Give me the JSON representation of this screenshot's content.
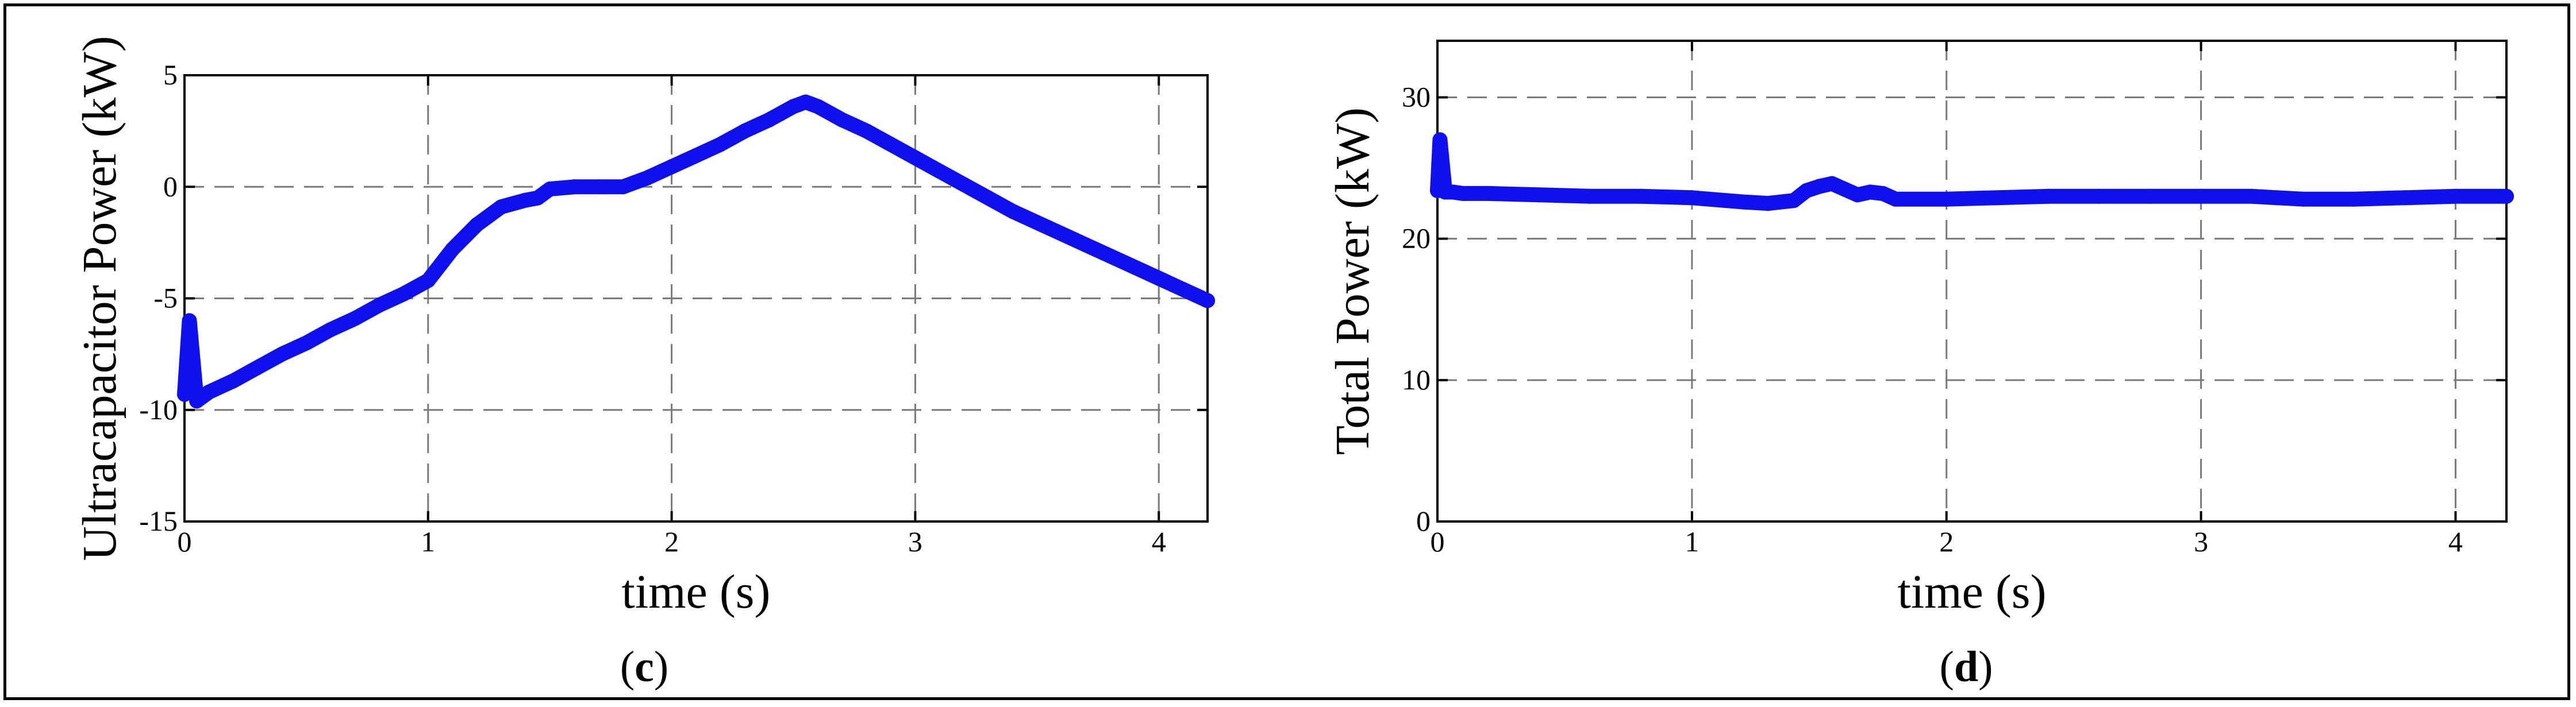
{
  "chart_data": [
    {
      "type": "line",
      "xlabel": "time (s)",
      "ylabel": "Ultracapacitor Power (kW)",
      "panel_label": "c",
      "xlim": [
        0,
        4.2
      ],
      "ylim": [
        -15,
        5
      ],
      "xticks": [
        "0",
        "1",
        "2",
        "3",
        "4"
      ],
      "yticks": [
        "-15",
        "-10",
        "-5",
        "0",
        "5"
      ],
      "grid": true,
      "line_color": "#1010ee",
      "series": [
        {
          "x": [
            0,
            0.02,
            0.05,
            0.1,
            0.2,
            0.3,
            0.4,
            0.5,
            0.6,
            0.7,
            0.8,
            0.9,
            1.0,
            1.05,
            1.1,
            1.2,
            1.3,
            1.4,
            1.45,
            1.5,
            1.6,
            1.7,
            1.8,
            1.9,
            2.0,
            2.1,
            2.2,
            2.3,
            2.4,
            2.5,
            2.55,
            2.6,
            2.7,
            2.8,
            2.9,
            3.0,
            3.1,
            3.2,
            3.3,
            3.4,
            3.5,
            3.6,
            3.7,
            3.8,
            3.9,
            4.0,
            4.1,
            4.2
          ],
          "values": [
            -9.3,
            -6.0,
            -9.6,
            -9.2,
            -8.7,
            -8.1,
            -7.5,
            -7.0,
            -6.4,
            -5.9,
            -5.3,
            -4.8,
            -4.2,
            -3.5,
            -2.8,
            -1.7,
            -0.9,
            -0.6,
            -0.5,
            -0.1,
            0.0,
            0.0,
            0.0,
            0.4,
            0.9,
            1.4,
            1.9,
            2.5,
            3.0,
            3.6,
            3.8,
            3.6,
            3.0,
            2.5,
            1.9,
            1.3,
            0.7,
            0.1,
            -0.5,
            -1.1,
            -1.6,
            -2.1,
            -2.6,
            -3.1,
            -3.6,
            -4.1,
            -4.6,
            -5.1
          ]
        }
      ]
    },
    {
      "type": "line",
      "xlabel": "time (s)",
      "ylabel": "Total Power (kW)",
      "panel_label": "d",
      "xlim": [
        0,
        4.2
      ],
      "ylim": [
        0,
        34
      ],
      "xticks": [
        "0",
        "1",
        "2",
        "3",
        "4"
      ],
      "yticks": [
        "0",
        "10",
        "20",
        "30"
      ],
      "grid": true,
      "line_color": "#1010ee",
      "series": [
        {
          "x": [
            0,
            0.01,
            0.03,
            0.06,
            0.1,
            0.2,
            0.4,
            0.6,
            0.8,
            1.0,
            1.2,
            1.3,
            1.4,
            1.45,
            1.5,
            1.55,
            1.6,
            1.65,
            1.7,
            1.75,
            1.8,
            2.0,
            2.2,
            2.4,
            2.6,
            2.8,
            3.0,
            3.2,
            3.3,
            3.4,
            3.6,
            3.8,
            4.0,
            4.2
          ],
          "values": [
            23.4,
            27.0,
            23.3,
            23.3,
            23.2,
            23.2,
            23.1,
            23.0,
            23.0,
            22.9,
            22.6,
            22.5,
            22.7,
            23.4,
            23.7,
            23.9,
            23.5,
            23.1,
            23.3,
            23.2,
            22.8,
            22.8,
            22.9,
            23.0,
            23.0,
            23.0,
            23.0,
            23.0,
            22.9,
            22.8,
            22.8,
            22.9,
            23.0,
            23.0
          ]
        }
      ]
    }
  ]
}
